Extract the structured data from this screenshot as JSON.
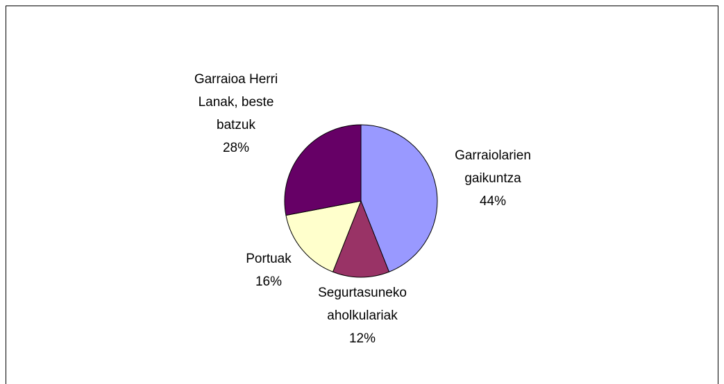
{
  "chart_data": {
    "type": "pie",
    "categories": [
      "Garraiolarien gaikuntza",
      "Segurtasuneko aholkulariak",
      "Portuak",
      "Garraioa Herri Lanak, beste batzuk"
    ],
    "values": [
      44,
      12,
      16,
      28
    ],
    "value_labels": [
      "44%",
      "12%",
      "16%",
      "28%"
    ],
    "colors": [
      "#9999ff",
      "#993366",
      "#ffffcc",
      "#660066"
    ]
  }
}
